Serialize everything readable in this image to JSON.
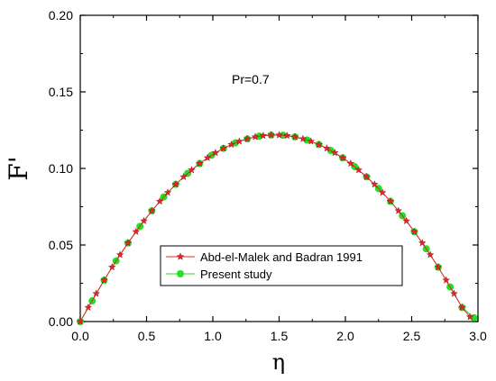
{
  "chart_data": {
    "type": "line",
    "title": "",
    "xlabel": "η",
    "ylabel": "F'",
    "xlim": [
      0.0,
      3.0
    ],
    "ylim": [
      0.0,
      0.2
    ],
    "xticks": [
      0.0,
      0.5,
      1.0,
      1.5,
      2.0,
      2.5,
      3.0
    ],
    "yticks": [
      0.0,
      0.05,
      0.1,
      0.15,
      0.2
    ],
    "xtick_labels": [
      "0.0",
      "0.5",
      "1.0",
      "1.5",
      "2.0",
      "2.5",
      "3.0"
    ],
    "ytick_labels": [
      "0.00",
      "0.05",
      "0.10",
      "0.15",
      "0.20"
    ],
    "grid": false,
    "legend": "bottom-center",
    "annotation": "Pr=0.7",
    "series": [
      {
        "name": "Abd-el-Malek and Badran 1991",
        "color": "#e8242a",
        "marker": "star-icon",
        "x": [
          0.0,
          0.06,
          0.12,
          0.18,
          0.24,
          0.3,
          0.36,
          0.42,
          0.48,
          0.54,
          0.6,
          0.66,
          0.72,
          0.78,
          0.84,
          0.9,
          0.96,
          1.02,
          1.08,
          1.14,
          1.2,
          1.26,
          1.32,
          1.38,
          1.44,
          1.5,
          1.56,
          1.62,
          1.68,
          1.74,
          1.8,
          1.86,
          1.92,
          1.98,
          2.04,
          2.1,
          2.16,
          2.22,
          2.28,
          2.34,
          2.4,
          2.46,
          2.52,
          2.58,
          2.64,
          2.7,
          2.76,
          2.82,
          2.88,
          2.94
        ],
        "y": [
          0.0,
          0.0092,
          0.0182,
          0.027,
          0.0355,
          0.0436,
          0.0513,
          0.0587,
          0.0657,
          0.0723,
          0.0785,
          0.0842,
          0.0896,
          0.0945,
          0.099,
          0.1032,
          0.1069,
          0.1102,
          0.1131,
          0.1156,
          0.1177,
          0.1193,
          0.1206,
          0.1214,
          0.1218,
          0.1218,
          0.1214,
          0.1206,
          0.1193,
          0.1177,
          0.1156,
          0.1131,
          0.1102,
          0.1069,
          0.1032,
          0.099,
          0.0945,
          0.0896,
          0.0842,
          0.0785,
          0.0723,
          0.0657,
          0.0587,
          0.0513,
          0.0436,
          0.0355,
          0.027,
          0.0182,
          0.0092,
          0.003
        ]
      },
      {
        "name": "Present study",
        "color": "#22e022",
        "marker": "circle-icon",
        "x": [
          0.0,
          0.09,
          0.18,
          0.27,
          0.36,
          0.45,
          0.54,
          0.63,
          0.72,
          0.81,
          0.9,
          0.99,
          1.08,
          1.17,
          1.26,
          1.35,
          1.44,
          1.53,
          1.62,
          1.71,
          1.8,
          1.89,
          1.98,
          2.07,
          2.16,
          2.25,
          2.34,
          2.43,
          2.52,
          2.61,
          2.7,
          2.79,
          2.88,
          2.97
        ],
        "y": [
          0.0,
          0.0135,
          0.027,
          0.0396,
          0.0513,
          0.0621,
          0.0723,
          0.0814,
          0.0896,
          0.0968,
          0.1032,
          0.1086,
          0.1131,
          0.1167,
          0.1193,
          0.1211,
          0.1218,
          0.1217,
          0.1206,
          0.1186,
          0.1156,
          0.1117,
          0.1069,
          0.1012,
          0.0945,
          0.0869,
          0.0785,
          0.0691,
          0.0587,
          0.0475,
          0.0355,
          0.0226,
          0.0092,
          0.0025
        ]
      }
    ]
  }
}
